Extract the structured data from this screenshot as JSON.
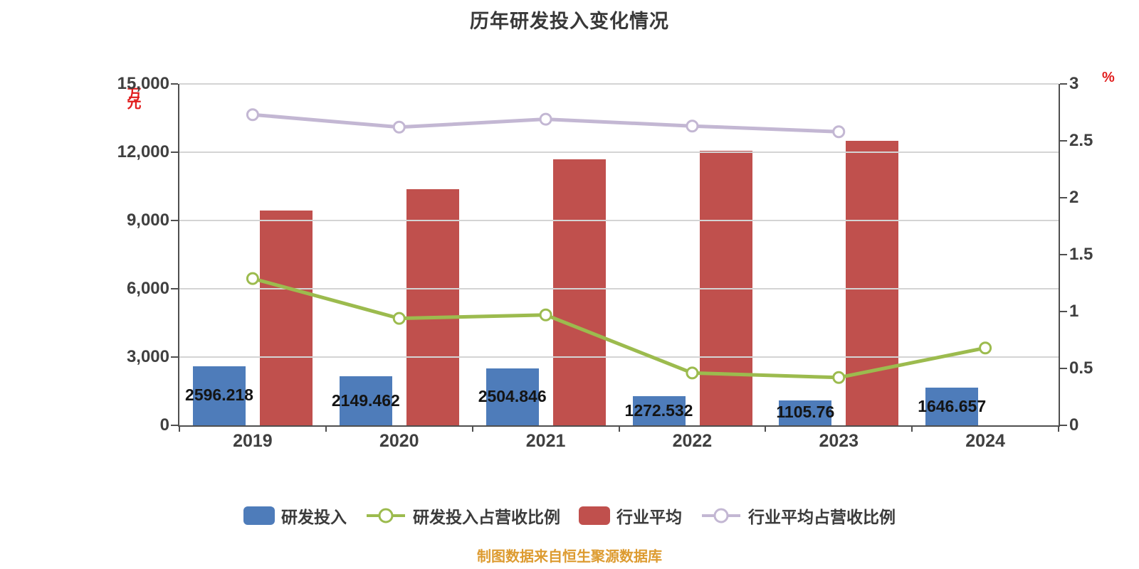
{
  "title": "历年研发投入变化情况",
  "footer": "制图数据来自恒生聚源数据库",
  "chart_data": {
    "type": "bar+line combo",
    "title": "历年研发投入变化情况",
    "categories": [
      "2019",
      "2020",
      "2021",
      "2022",
      "2023",
      "2024"
    ],
    "series": [
      {
        "name": "研发投入",
        "type": "bar",
        "axis": "left",
        "color": "#4e7cba",
        "values": [
          2596.218,
          2149.462,
          2504.846,
          1272.532,
          1105.76,
          1646.657
        ],
        "value_labels": [
          "2596.218",
          "2149.462",
          "2504.846",
          "1272.532",
          "1105.76",
          "1646.657"
        ]
      },
      {
        "name": "行业平均",
        "type": "bar",
        "axis": "left",
        "color": "#c0504d",
        "values": [
          9450,
          10380,
          11690,
          12060,
          12500,
          null
        ]
      },
      {
        "name": "研发投入占营收比例",
        "type": "line",
        "axis": "right",
        "color": "#9cbb4e",
        "values": [
          1.29,
          0.94,
          0.97,
          0.46,
          0.42,
          0.68
        ]
      },
      {
        "name": "行业平均占营收比例",
        "type": "line",
        "axis": "right",
        "color": "#c3b7d3",
        "values": [
          2.73,
          2.62,
          2.69,
          2.63,
          2.58,
          null
        ]
      }
    ],
    "left_axis": {
      "unit": "万元",
      "min": 0,
      "max": 15000,
      "step": 3000,
      "tick_labels": [
        "0",
        "3,000",
        "6,000",
        "9,000",
        "12,000",
        "15,000"
      ]
    },
    "right_axis": {
      "unit": "%",
      "min": 0,
      "max": 3,
      "step": 0.5,
      "tick_labels": [
        "0",
        "0.5",
        "1",
        "1.5",
        "2",
        "2.5",
        "3"
      ]
    },
    "grid": "horizontal gridlines at left-axis ticks",
    "legend_position": "bottom"
  },
  "legend": {
    "items": [
      {
        "label": "研发投入",
        "swatch": "bar",
        "color": "#4e7cba"
      },
      {
        "label": "研发投入占营收比例",
        "swatch": "line",
        "color": "#9cbb4e"
      },
      {
        "label": "行业平均",
        "swatch": "bar",
        "color": "#c0504d"
      },
      {
        "label": "行业平均占营收比例",
        "swatch": "line",
        "color": "#c3b7d3"
      }
    ]
  },
  "colors": {
    "bar_rnd": "#4e7cba",
    "bar_industry": "#c0504d",
    "line_rnd_ratio": "#9cbb4e",
    "line_industry_ratio": "#c3b7d3",
    "gridline": "#d4d4d4",
    "axis": "#4f4f4f",
    "tick_text": "#404040",
    "title_text": "#383838",
    "footer_text": "#dd9b30",
    "unit_text": "#e11d1d",
    "marker_fill": "#ffffff"
  }
}
